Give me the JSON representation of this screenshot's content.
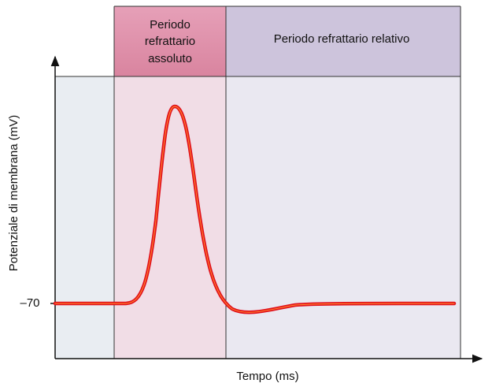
{
  "diagram": {
    "y_axis_label": "Potenziale di membrana (mV)",
    "x_axis_label": "Tempo (ms)",
    "y_tick_label": "–70",
    "regions": [
      {
        "label_lines": [
          "Periodo",
          "refrattario",
          "assoluto"
        ]
      },
      {
        "label_lines": [
          "Periodo refrattario relativo"
        ]
      }
    ]
  }
}
